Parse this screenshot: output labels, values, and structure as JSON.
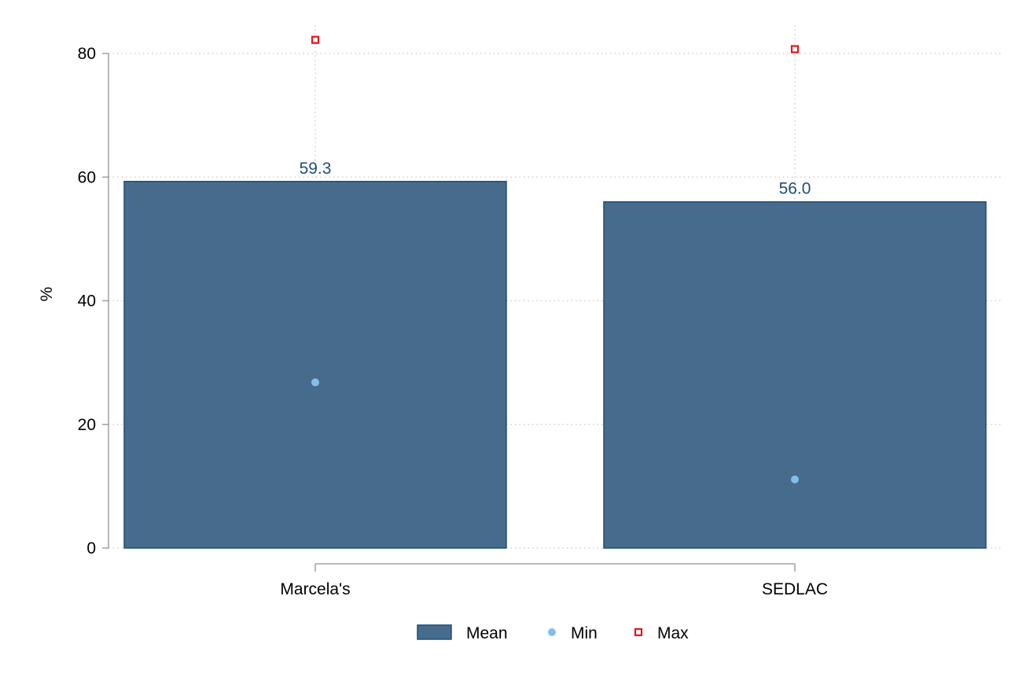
{
  "chart_data": {
    "type": "bar",
    "categories": [
      "Marcela's",
      "SEDLAC"
    ],
    "series": [
      {
        "name": "Mean",
        "kind": "bar",
        "values": [
          59.3,
          56.0
        ],
        "labels": [
          "59.3",
          "56.0"
        ],
        "color": "#476b8c",
        "edge": "#1f4e79"
      },
      {
        "name": "Min",
        "kind": "scatter",
        "marker": "circle",
        "values": [
          26.8,
          11.1
        ],
        "color": "#85bde8"
      },
      {
        "name": "Max",
        "kind": "scatter",
        "marker": "hollow-square",
        "values": [
          82.2,
          80.7
        ],
        "color": "#e8141a"
      }
    ],
    "title": "",
    "xlabel": "",
    "ylabel": "%",
    "ylim": [
      0,
      80
    ],
    "yticks": [
      0,
      20,
      40,
      60,
      80
    ],
    "ytick_labels": [
      "0",
      "20",
      "40",
      "60",
      "80"
    ],
    "grid": true,
    "legend": {
      "position": "bottom",
      "entries": [
        "Mean",
        "Min",
        "Max"
      ]
    },
    "colors": {
      "data_label": "#1f4e79",
      "grid": "#c8c8c8",
      "axis": "#a0a0a0"
    }
  }
}
